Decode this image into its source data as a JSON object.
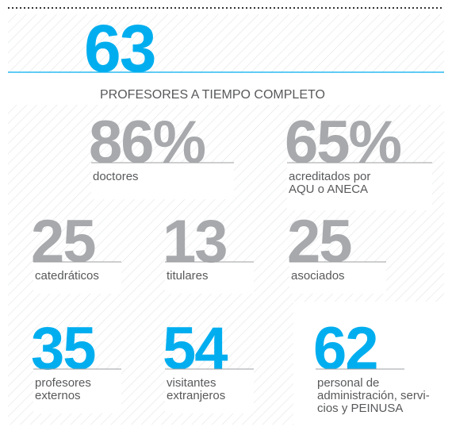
{
  "headline": {
    "value": "63",
    "label": "PROFESORES A TIEMPO COMPLETO",
    "color": "#00aeef"
  },
  "stats": [
    {
      "value": "86%",
      "label": [
        "doctores"
      ],
      "color": "#a7a9ac"
    },
    {
      "value": "65%",
      "label": [
        "acreditados por",
        "AQU o ANECA"
      ],
      "color": "#a7a9ac"
    },
    {
      "value": "25",
      "label": [
        "catedráticos"
      ],
      "color": "#a7a9ac"
    },
    {
      "value": "13",
      "label": [
        "titulares"
      ],
      "color": "#a7a9ac"
    },
    {
      "value": "25",
      "label": [
        "asociados"
      ],
      "color": "#a7a9ac"
    },
    {
      "value": "35",
      "label": [
        "profesores",
        "externos"
      ],
      "color": "#00aeef"
    },
    {
      "value": "54",
      "label": [
        "visitantes",
        "extranjeros"
      ],
      "color": "#00aeef"
    },
    {
      "value": "62",
      "label": [
        "personal de",
        "administración, servi-",
        "cios y PEINUSA"
      ],
      "color": "#00aeef"
    }
  ]
}
